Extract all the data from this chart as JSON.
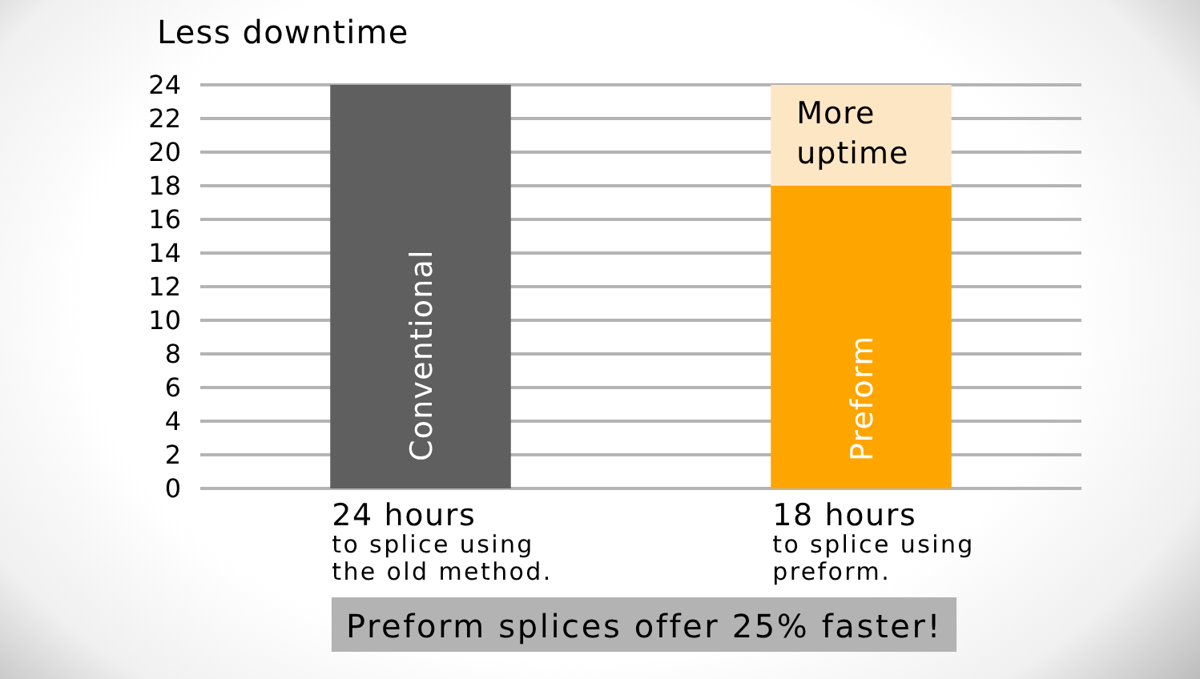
{
  "chart_data": {
    "type": "bar",
    "title": "Less downtime",
    "categories": [
      "24 hours\nto splice using\nthe old method.",
      "18 hours\nto splice using\npreform."
    ],
    "series": [
      {
        "name": "Conventional",
        "color": "#5f5f5f",
        "values": [
          24,
          null
        ]
      },
      {
        "name": "Preform",
        "color": "#ffa500",
        "values": [
          null,
          18
        ]
      },
      {
        "name": "More uptime",
        "color": "#fde6c4",
        "values": [
          null,
          6
        ]
      }
    ],
    "stacked": true,
    "ylim": [
      0,
      24
    ],
    "yticks": [
      0,
      2,
      4,
      6,
      8,
      10,
      12,
      14,
      16,
      18,
      20,
      22,
      24
    ],
    "grid": "y",
    "annotations": [
      "Preform splices offer 25% faster!"
    ]
  }
}
